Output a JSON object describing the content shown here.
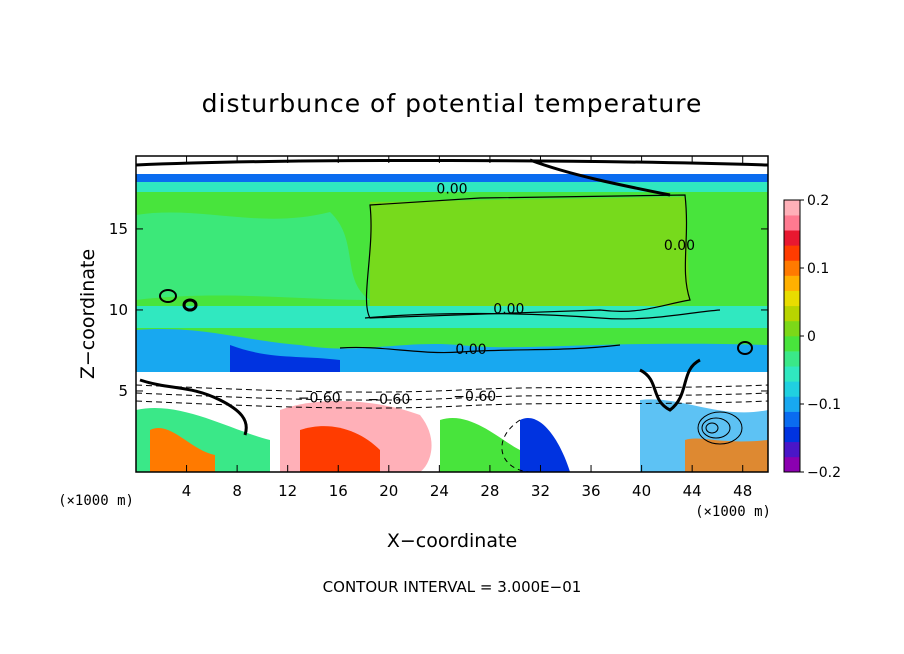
{
  "chart_data": {
    "type": "heatmap",
    "title": "disturbunce of potential temperature",
    "xlabel": "X−coordinate",
    "ylabel": "Z−coordinate",
    "x_unit_left": "(×1000 m)",
    "x_unit_right": "(×1000 m)",
    "xlim": [
      0,
      50
    ],
    "ylim": [
      0,
      19.5
    ],
    "xticks": [
      4,
      8,
      12,
      16,
      20,
      24,
      28,
      32,
      36,
      40,
      44,
      48
    ],
    "yticks": [
      5,
      10,
      15
    ],
    "colorbar": {
      "range": [
        -0.2,
        0.2
      ],
      "ticks": [
        "0.2",
        "0.1",
        "0",
        "−0.1",
        "−0.2"
      ],
      "colors": [
        "#8b00b0",
        "#4a16c8",
        "#0033e0",
        "#0a6cf0",
        "#18a8f0",
        "#20d0e0",
        "#30e8c0",
        "#3ae888",
        "#48e43c",
        "#7cd818",
        "#b8d400",
        "#e8dc00",
        "#ffb000",
        "#ff7a00",
        "#ff3c00",
        "#e81830",
        "#ff7a90",
        "#ffb0b8"
      ]
    },
    "contour_labels": [
      {
        "text": "0.00",
        "x": 25.0,
        "z": 17.5
      },
      {
        "text": "0.00",
        "x": 43.0,
        "z": 14.0
      },
      {
        "text": "0.00",
        "x": 29.5,
        "z": 10.1
      },
      {
        "text": "0.00",
        "x": 26.5,
        "z": 7.6
      },
      {
        "text": "−0.60",
        "x": 14.5,
        "z": 4.6
      },
      {
        "text": "−0.60",
        "x": 20.0,
        "z": 4.5
      },
      {
        "text": "−0.60",
        "x": 26.8,
        "z": 4.7
      }
    ],
    "contour_interval": "CONTOUR INTERVAL = 3.000E−01"
  }
}
